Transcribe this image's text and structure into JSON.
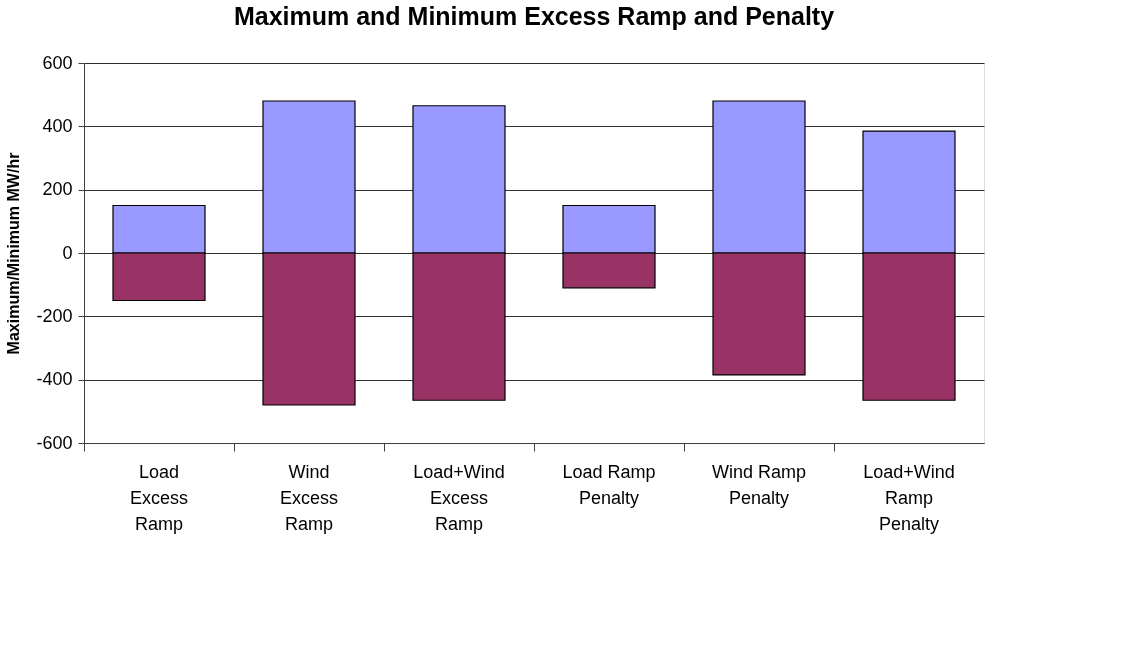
{
  "chart_data": {
    "type": "bar",
    "title": "Maximum and Minimum Excess Ramp and Penalty",
    "ylabel": "Maximum/Minimum MW/hr",
    "categories": [
      "Load Excess Ramp",
      "Wind Excess Ramp",
      "Load+Wind Excess Ramp",
      "Load Ramp Penalty",
      "Wind Ramp Penalty",
      "Load+Wind Ramp Penalty"
    ],
    "stacked": true,
    "series": [
      {
        "color": "#9999ff",
        "values": [
          150,
          480,
          465,
          150,
          480,
          385
        ]
      },
      {
        "color": "#993366",
        "values": [
          -150,
          -480,
          -465,
          -110,
          -385,
          -465
        ]
      }
    ],
    "ylim": [
      -600,
      600
    ],
    "yticks": [
      -600,
      -400,
      -200,
      0,
      200,
      400,
      600
    ],
    "grid": "y"
  }
}
